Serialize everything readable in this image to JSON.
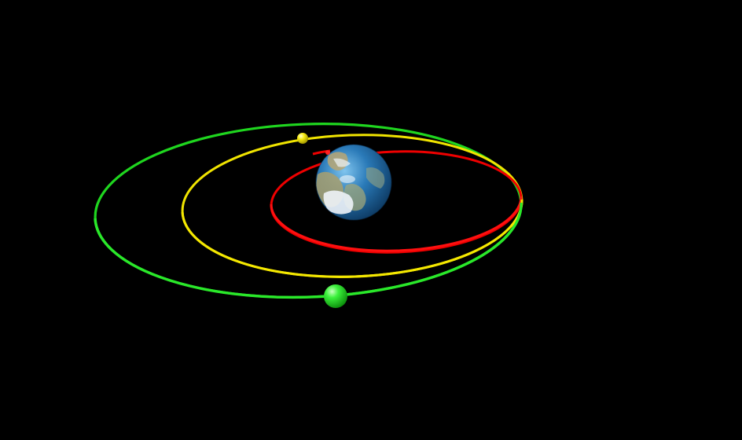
{
  "scene": {
    "background_color": "#000000",
    "central_body": {
      "name": "Earth",
      "ocean_color": "#1f6fa8",
      "land_color": "#b9a77a",
      "cloud_color": "#e8eef5"
    },
    "orbits": [
      {
        "name": "inner-orbit",
        "color": "#ff0000",
        "satellite": false
      },
      {
        "name": "middle-orbit",
        "color": "#f2e600",
        "satellite": true
      },
      {
        "name": "outer-orbit",
        "color": "#22e022",
        "satellite": true
      }
    ]
  }
}
